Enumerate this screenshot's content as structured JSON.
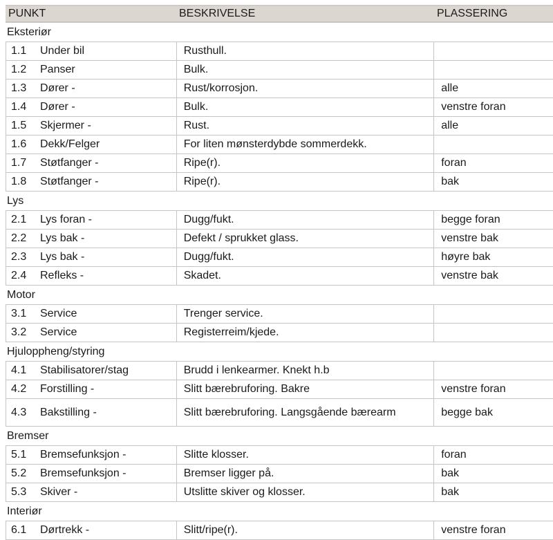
{
  "header": {
    "punkt": "PUNKT",
    "beskrivelse": "BESKRIVELSE",
    "plassering": "PLASSERING"
  },
  "sections": [
    {
      "title": "Eksteriør",
      "rows": [
        {
          "num": "1.1",
          "punkt": "Under bil",
          "beskrivelse": "Rusthull.",
          "plassering": ""
        },
        {
          "num": "1.2",
          "punkt": "Panser",
          "beskrivelse": "Bulk.",
          "plassering": ""
        },
        {
          "num": "1.3",
          "punkt": "Dører -",
          "beskrivelse": "Rust/korrosjon.",
          "plassering": "alle"
        },
        {
          "num": "1.4",
          "punkt": "Dører -",
          "beskrivelse": "Bulk.",
          "plassering": "venstre foran"
        },
        {
          "num": "1.5",
          "punkt": "Skjermer -",
          "beskrivelse": "Rust.",
          "plassering": "alle"
        },
        {
          "num": "1.6",
          "punkt": "Dekk/Felger",
          "beskrivelse": "For liten mønsterdybde sommerdekk.",
          "plassering": ""
        },
        {
          "num": "1.7",
          "punkt": "Støtfanger -",
          "beskrivelse": "Ripe(r).",
          "plassering": "foran"
        },
        {
          "num": "1.8",
          "punkt": "Støtfanger -",
          "beskrivelse": "Ripe(r).",
          "plassering": "bak"
        }
      ]
    },
    {
      "title": "Lys",
      "rows": [
        {
          "num": "2.1",
          "punkt": "Lys foran -",
          "beskrivelse": "Dugg/fukt.",
          "plassering": "begge foran"
        },
        {
          "num": "2.2",
          "punkt": "Lys bak -",
          "beskrivelse": "Defekt / sprukket glass.",
          "plassering": "venstre bak"
        },
        {
          "num": "2.3",
          "punkt": "Lys bak -",
          "beskrivelse": "Dugg/fukt.",
          "plassering": "høyre bak"
        },
        {
          "num": "2.4",
          "punkt": "Refleks -",
          "beskrivelse": "Skadet.",
          "plassering": "venstre bak"
        }
      ]
    },
    {
      "title": "Motor",
      "rows": [
        {
          "num": "3.1",
          "punkt": "Service",
          "beskrivelse": "Trenger service.",
          "plassering": ""
        },
        {
          "num": "3.2",
          "punkt": "Service",
          "beskrivelse": "Registerreim/kjede.",
          "plassering": ""
        }
      ]
    },
    {
      "title": "Hjuloppheng/styring",
      "rows": [
        {
          "num": "4.1",
          "punkt": "Stabilisatorer/stag",
          "beskrivelse": "Brudd i lenkearmer. Knekt h.b",
          "plassering": ""
        },
        {
          "num": "4.2",
          "punkt": "Forstilling -",
          "beskrivelse": "Slitt bærebruforing. Bakre",
          "plassering": "venstre foran"
        },
        {
          "num": "4.3",
          "punkt": "Bakstilling -",
          "beskrivelse": "Slitt bærebruforing. Langsgående bærearm",
          "plassering": "begge bak",
          "tall": true
        }
      ]
    },
    {
      "title": "Bremser",
      "rows": [
        {
          "num": "5.1",
          "punkt": "Bremsefunksjon -",
          "beskrivelse": "Slitte klosser.",
          "plassering": "foran"
        },
        {
          "num": "5.2",
          "punkt": "Bremsefunksjon -",
          "beskrivelse": "Bremser ligger på.",
          "plassering": "bak"
        },
        {
          "num": "5.3",
          "punkt": "Skiver -",
          "beskrivelse": "Utslitte skiver og klosser.",
          "plassering": "bak"
        }
      ]
    },
    {
      "title": "Interiør",
      "rows": [
        {
          "num": "6.1",
          "punkt": "Dørtrekk -",
          "beskrivelse": "Slitt/ripe(r).",
          "plassering": "venstre foran"
        }
      ]
    }
  ]
}
